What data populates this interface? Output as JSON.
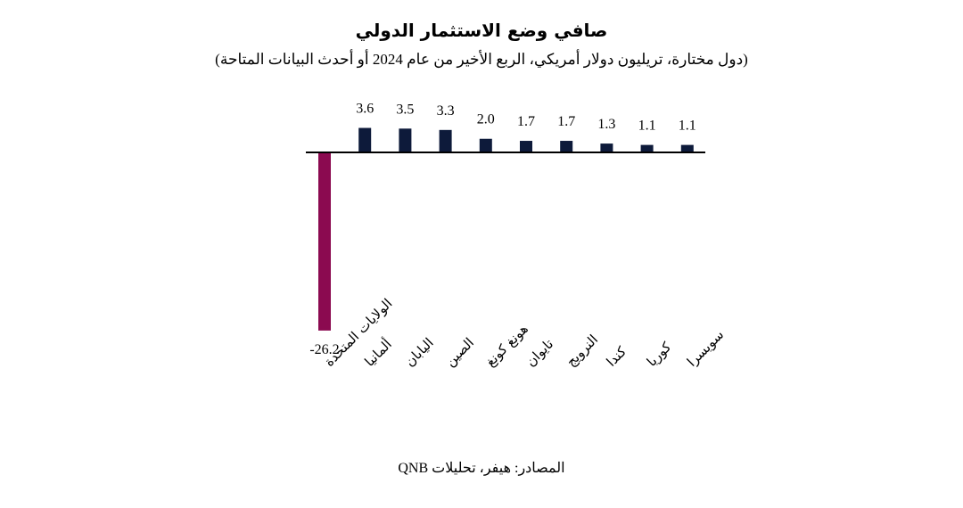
{
  "title": "صافي وضع الاستثمار الدولي",
  "subtitle": "(دول مختارة، تريليون دولار أمريكي، الربع الأخير من عام 2024 أو أحدث البيانات المتاحة)",
  "source": "المصادر: هيفر، تحليلات QNB",
  "chart_data": {
    "type": "bar",
    "categories": [
      "الولايات المتحدة",
      "ألمانيا",
      "اليابان",
      "الصين",
      "هونغ كونغ",
      "تايوان",
      "النرويج",
      "كندا",
      "كوريا",
      "سويسرا"
    ],
    "values": [
      -26.2,
      3.6,
      3.5,
      3.3,
      2.0,
      1.7,
      1.7,
      1.3,
      1.1,
      1.1
    ],
    "value_labels": [
      "-26.2",
      "3.6",
      "3.5",
      "3.3",
      "2.0",
      "1.7",
      "1.7",
      "1.3",
      "1.1",
      "1.1"
    ],
    "colors": {
      "negative": "#8b0a50",
      "positive": "#0d1a3a",
      "axis": "#000000"
    },
    "legend": "none",
    "grid": false
  }
}
